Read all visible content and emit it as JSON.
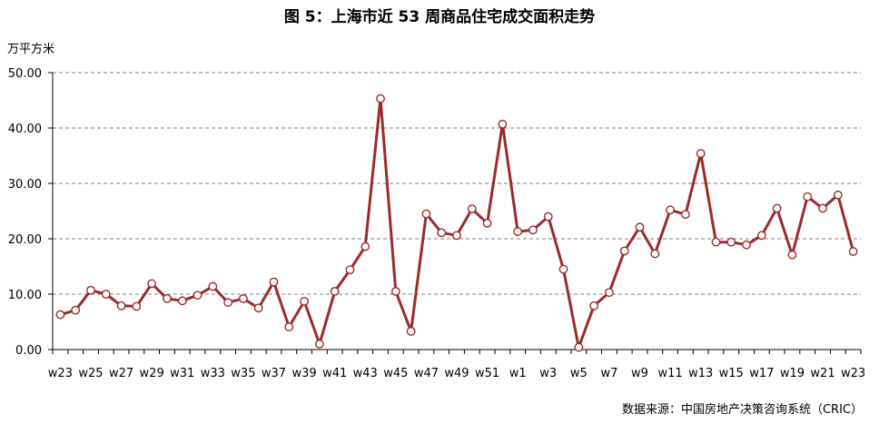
{
  "title": "图 5：上海市近 53 周商品住宅成交面积走势",
  "source": "数据来源：中国房地产决策咨询系统（CRIC）",
  "colors": {
    "line": "#9b2b2b",
    "marker_fill": "#ffffff",
    "grid": "#808080",
    "axis": "#000000"
  },
  "chart_data": {
    "type": "line",
    "ylabel": "万平方米",
    "ylim": [
      0,
      50
    ],
    "yticks": [
      "0.00",
      "10.00",
      "20.00",
      "30.00",
      "40.00",
      "50.00"
    ],
    "grid": "horizontal-dashed",
    "x": [
      "w23",
      "w24",
      "w25",
      "w26",
      "w27",
      "w28",
      "w29",
      "w30",
      "w31",
      "w32",
      "w33",
      "w34",
      "w35",
      "w36",
      "w37",
      "w38",
      "w39",
      "w40",
      "w41",
      "w42",
      "w43",
      "w44",
      "w45",
      "w46",
      "w47",
      "w48",
      "w49",
      "w50",
      "w51",
      "w52",
      "w1",
      "w2",
      "w3",
      "w4",
      "w5",
      "w6",
      "w7",
      "w8",
      "w9",
      "w10",
      "w11",
      "w12",
      "w13",
      "w14",
      "w15",
      "w16",
      "w17",
      "w18",
      "w19",
      "w20",
      "w21",
      "w22",
      "w23"
    ],
    "x_tick_labels": [
      "w23",
      "",
      "w25",
      "",
      "w27",
      "",
      "w29",
      "",
      "w31",
      "",
      "w33",
      "",
      "w35",
      "",
      "w37",
      "",
      "w39",
      "",
      "w41",
      "",
      "w43",
      "",
      "w45",
      "",
      "w47",
      "",
      "w49",
      "",
      "w51",
      "",
      "w1",
      "",
      "w3",
      "",
      "w5",
      "",
      "w7",
      "",
      "w9",
      "",
      "w11",
      "",
      "w13",
      "",
      "w15",
      "",
      "w17",
      "",
      "w19",
      "",
      "w21",
      "",
      "w23"
    ],
    "series": [
      {
        "values": [
          6.3,
          7.1,
          10.7,
          10.0,
          7.9,
          7.8,
          11.9,
          9.2,
          8.8,
          9.8,
          11.4,
          8.5,
          9.2,
          7.5,
          12.2,
          4.1,
          8.7,
          1.0,
          10.5,
          14.4,
          18.6,
          45.3,
          10.5,
          3.3,
          24.5,
          21.1,
          20.6,
          25.4,
          22.8,
          40.7,
          21.3,
          21.6,
          24.0,
          14.5,
          0.4,
          7.9,
          10.3,
          17.8,
          22.1,
          17.3,
          25.2,
          24.4,
          35.4,
          19.4,
          19.4,
          18.9,
          20.6,
          25.5,
          17.1,
          27.6,
          25.5,
          27.9,
          17.7
        ]
      }
    ]
  }
}
